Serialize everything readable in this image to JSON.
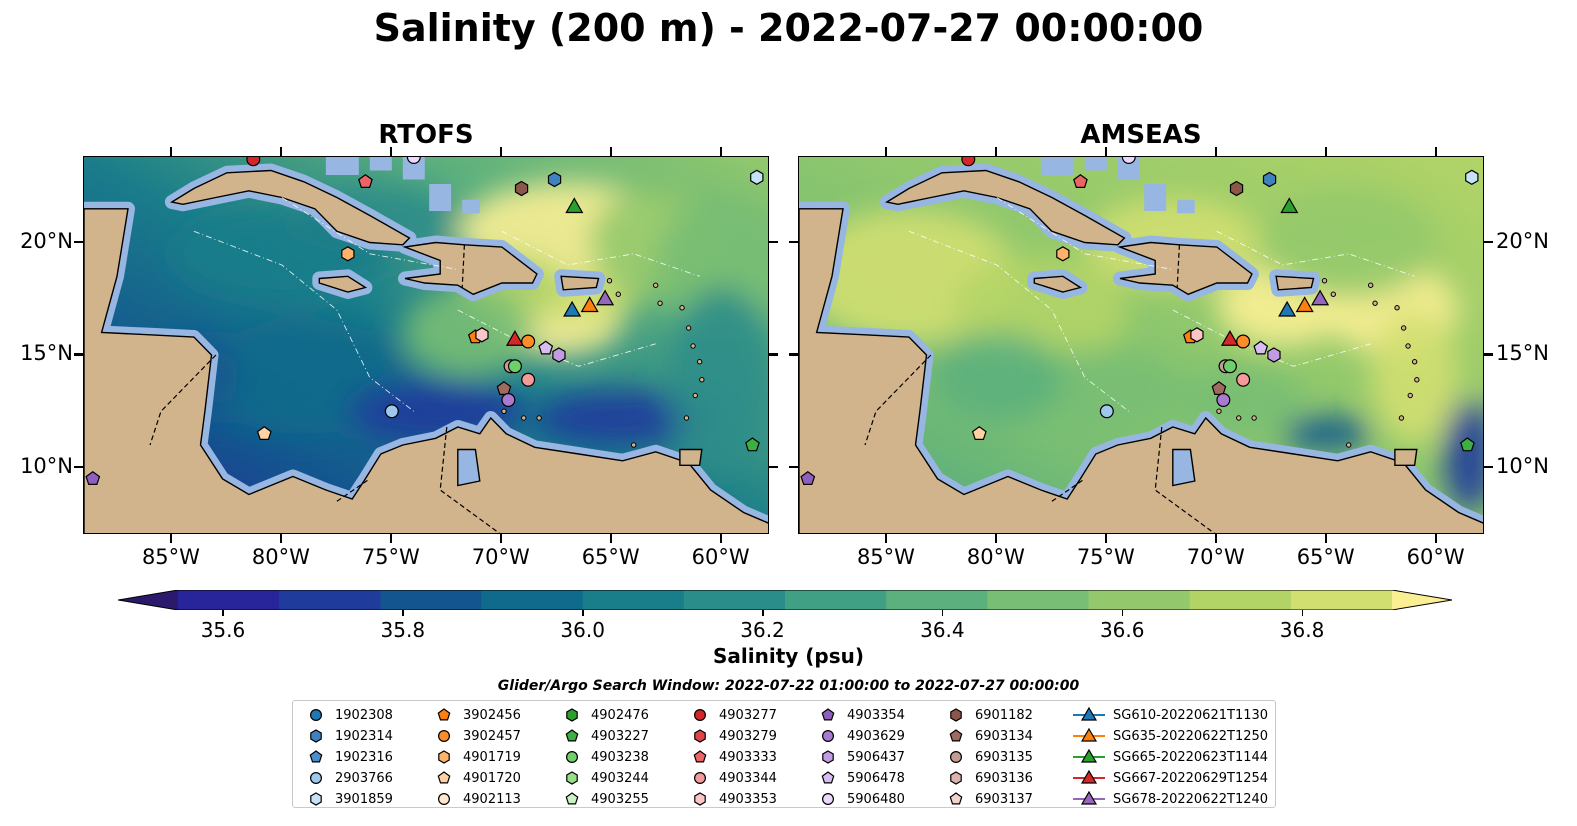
{
  "title": "Salinity (200 m) - 2022-07-27 00:00:00",
  "panels": [
    {
      "title": "RTOFS",
      "y_label_side": "left"
    },
    {
      "title": "AMSEAS",
      "y_label_side": "right"
    }
  ],
  "map": {
    "lon_range": [
      -89.0,
      -57.8
    ],
    "lat_range": [
      7.0,
      23.8
    ],
    "lon_ticks": [
      "85°W",
      "80°W",
      "75°W",
      "70°W",
      "65°W",
      "60°W"
    ],
    "lon_tick_values": [
      -85,
      -80,
      -75,
      -70,
      -65,
      -60
    ],
    "lat_ticks": [
      "10°N",
      "15°N",
      "20°N"
    ],
    "lat_tick_values": [
      10,
      15,
      20
    ],
    "land_color": "#d2b48c",
    "shelf_color": "#97b6e1"
  },
  "colorbar": {
    "label": "Salinity (psu)",
    "tick_labels": [
      "35.6",
      "35.8",
      "36.0",
      "36.2",
      "36.4",
      "36.6",
      "36.8"
    ],
    "tick_values": [
      35.6,
      35.8,
      36.0,
      36.2,
      36.4,
      36.6,
      36.8
    ],
    "range": [
      35.55,
      36.9
    ],
    "colors": [
      "#2b1a6b",
      "#28259a",
      "#1f3c9c",
      "#13568f",
      "#0f6a8b",
      "#1a7d8a",
      "#2b8d89",
      "#3fa084",
      "#5cb07d",
      "#78be74",
      "#93c96c",
      "#b2d467",
      "#d1df71",
      "#fbef93"
    ]
  },
  "legend": {
    "title": "Glider/Argo Search Window: 2022-07-22 01:00:00 to 2022-07-27 00:00:00",
    "items": [
      {
        "label": "1902308",
        "marker": "circle",
        "color": "#1f77b4"
      },
      {
        "label": "1902314",
        "marker": "hexagon",
        "color": "#3f82c0"
      },
      {
        "label": "1902316",
        "marker": "pentagon",
        "color": "#4a8fcc"
      },
      {
        "label": "2903766",
        "marker": "circle",
        "color": "#9ec8ec"
      },
      {
        "label": "3901859",
        "marker": "hexagon",
        "color": "#c6e2f7"
      },
      {
        "label": "3902456",
        "marker": "pentagon",
        "color": "#ff7f0e"
      },
      {
        "label": "3902457",
        "marker": "circle",
        "color": "#ff8c2a"
      },
      {
        "label": "4901719",
        "marker": "hexagon",
        "color": "#ffb26b"
      },
      {
        "label": "4901720",
        "marker": "pentagon",
        "color": "#ffd2a3"
      },
      {
        "label": "4902113",
        "marker": "circle",
        "color": "#ffe8cc"
      },
      {
        "label": "4902476",
        "marker": "hexagon",
        "color": "#2ca02c"
      },
      {
        "label": "4903227",
        "marker": "pentagon",
        "color": "#3cb043"
      },
      {
        "label": "4903238",
        "marker": "circle",
        "color": "#6fcf6a"
      },
      {
        "label": "4903244",
        "marker": "hexagon",
        "color": "#98df8a"
      },
      {
        "label": "4903255",
        "marker": "pentagon",
        "color": "#c9f3c0"
      },
      {
        "label": "4903277",
        "marker": "circle",
        "color": "#d62728"
      },
      {
        "label": "4903279",
        "marker": "hexagon",
        "color": "#e04447"
      },
      {
        "label": "4903333",
        "marker": "pentagon",
        "color": "#ec6466"
      },
      {
        "label": "4903344",
        "marker": "circle",
        "color": "#f49a9a"
      },
      {
        "label": "4903353",
        "marker": "hexagon",
        "color": "#fbc6c6"
      },
      {
        "label": "4903354",
        "marker": "pentagon",
        "color": "#8e5fbd"
      },
      {
        "label": "4903629",
        "marker": "circle",
        "color": "#a97ad2"
      },
      {
        "label": "5906437",
        "marker": "hexagon",
        "color": "#c39be3"
      },
      {
        "label": "5906478",
        "marker": "pentagon",
        "color": "#d8bdf0"
      },
      {
        "label": "5906480",
        "marker": "circle",
        "color": "#ead9fa"
      },
      {
        "label": "6901182",
        "marker": "hexagon",
        "color": "#8c564b"
      },
      {
        "label": "6903134",
        "marker": "pentagon",
        "color": "#a06b5f"
      },
      {
        "label": "6903135",
        "marker": "circle",
        "color": "#c49c94"
      },
      {
        "label": "6903136",
        "marker": "hexagon",
        "color": "#dcb4ad"
      },
      {
        "label": "6903137",
        "marker": "pentagon",
        "color": "#f2d3ce"
      },
      {
        "label": "SG610-20220621T1130",
        "marker": "triangle",
        "color": "#1f77b4"
      },
      {
        "label": "SG635-20220622T1250",
        "marker": "triangle",
        "color": "#ff7f0e"
      },
      {
        "label": "SG665-20220623T1144",
        "marker": "triangle",
        "color": "#2ca02c"
      },
      {
        "label": "SG667-20220629T1254",
        "marker": "triangle",
        "color": "#d62728"
      },
      {
        "label": "SG678-20220622T1240",
        "marker": "triangle",
        "color": "#9467bd"
      }
    ]
  },
  "observations": [
    {
      "id": "4903277",
      "lon": -81.3,
      "lat": 23.7
    },
    {
      "id": "4903333",
      "lon": -76.2,
      "lat": 22.7
    },
    {
      "id": "5906480",
      "lon": -74.0,
      "lat": 23.8
    },
    {
      "id": "6901182",
      "lon": -69.1,
      "lat": 22.4
    },
    {
      "id": "1902314",
      "lon": -67.6,
      "lat": 22.8
    },
    {
      "id": "SG665-20220623T1144",
      "lon": -66.7,
      "lat": 21.6
    },
    {
      "id": "3901859",
      "lon": -58.4,
      "lat": 22.9
    },
    {
      "id": "4901719",
      "lon": -77.0,
      "lat": 19.5
    },
    {
      "id": "SG610-20220621T1130",
      "lon": -66.8,
      "lat": 17.0
    },
    {
      "id": "SG635-20220622T1250",
      "lon": -66.0,
      "lat": 17.2
    },
    {
      "id": "SG678-20220622T1240",
      "lon": -65.3,
      "lat": 17.5
    },
    {
      "id": "3902456",
      "lon": -71.2,
      "lat": 15.8
    },
    {
      "id": "4903353",
      "lon": -70.9,
      "lat": 15.9
    },
    {
      "id": "SG667-20220629T1254",
      "lon": -69.4,
      "lat": 15.7
    },
    {
      "id": "3902457",
      "lon": -68.8,
      "lat": 15.6
    },
    {
      "id": "5906478",
      "lon": -68.0,
      "lat": 15.3
    },
    {
      "id": "5906437",
      "lon": -67.4,
      "lat": 15.0
    },
    {
      "id": "6903135",
      "lon": -69.6,
      "lat": 14.5
    },
    {
      "id": "4903238",
      "lon": -69.4,
      "lat": 14.5
    },
    {
      "id": "4903344",
      "lon": -68.8,
      "lat": 13.9
    },
    {
      "id": "6903134",
      "lon": -69.9,
      "lat": 13.5
    },
    {
      "id": "4903629",
      "lon": -69.7,
      "lat": 13.0
    },
    {
      "id": "2903766",
      "lon": -75.0,
      "lat": 12.5
    },
    {
      "id": "4901720",
      "lon": -80.8,
      "lat": 11.5
    },
    {
      "id": "4903227",
      "lon": -58.6,
      "lat": 11.0
    },
    {
      "id": "4903354",
      "lon": -88.6,
      "lat": 9.5
    }
  ]
}
